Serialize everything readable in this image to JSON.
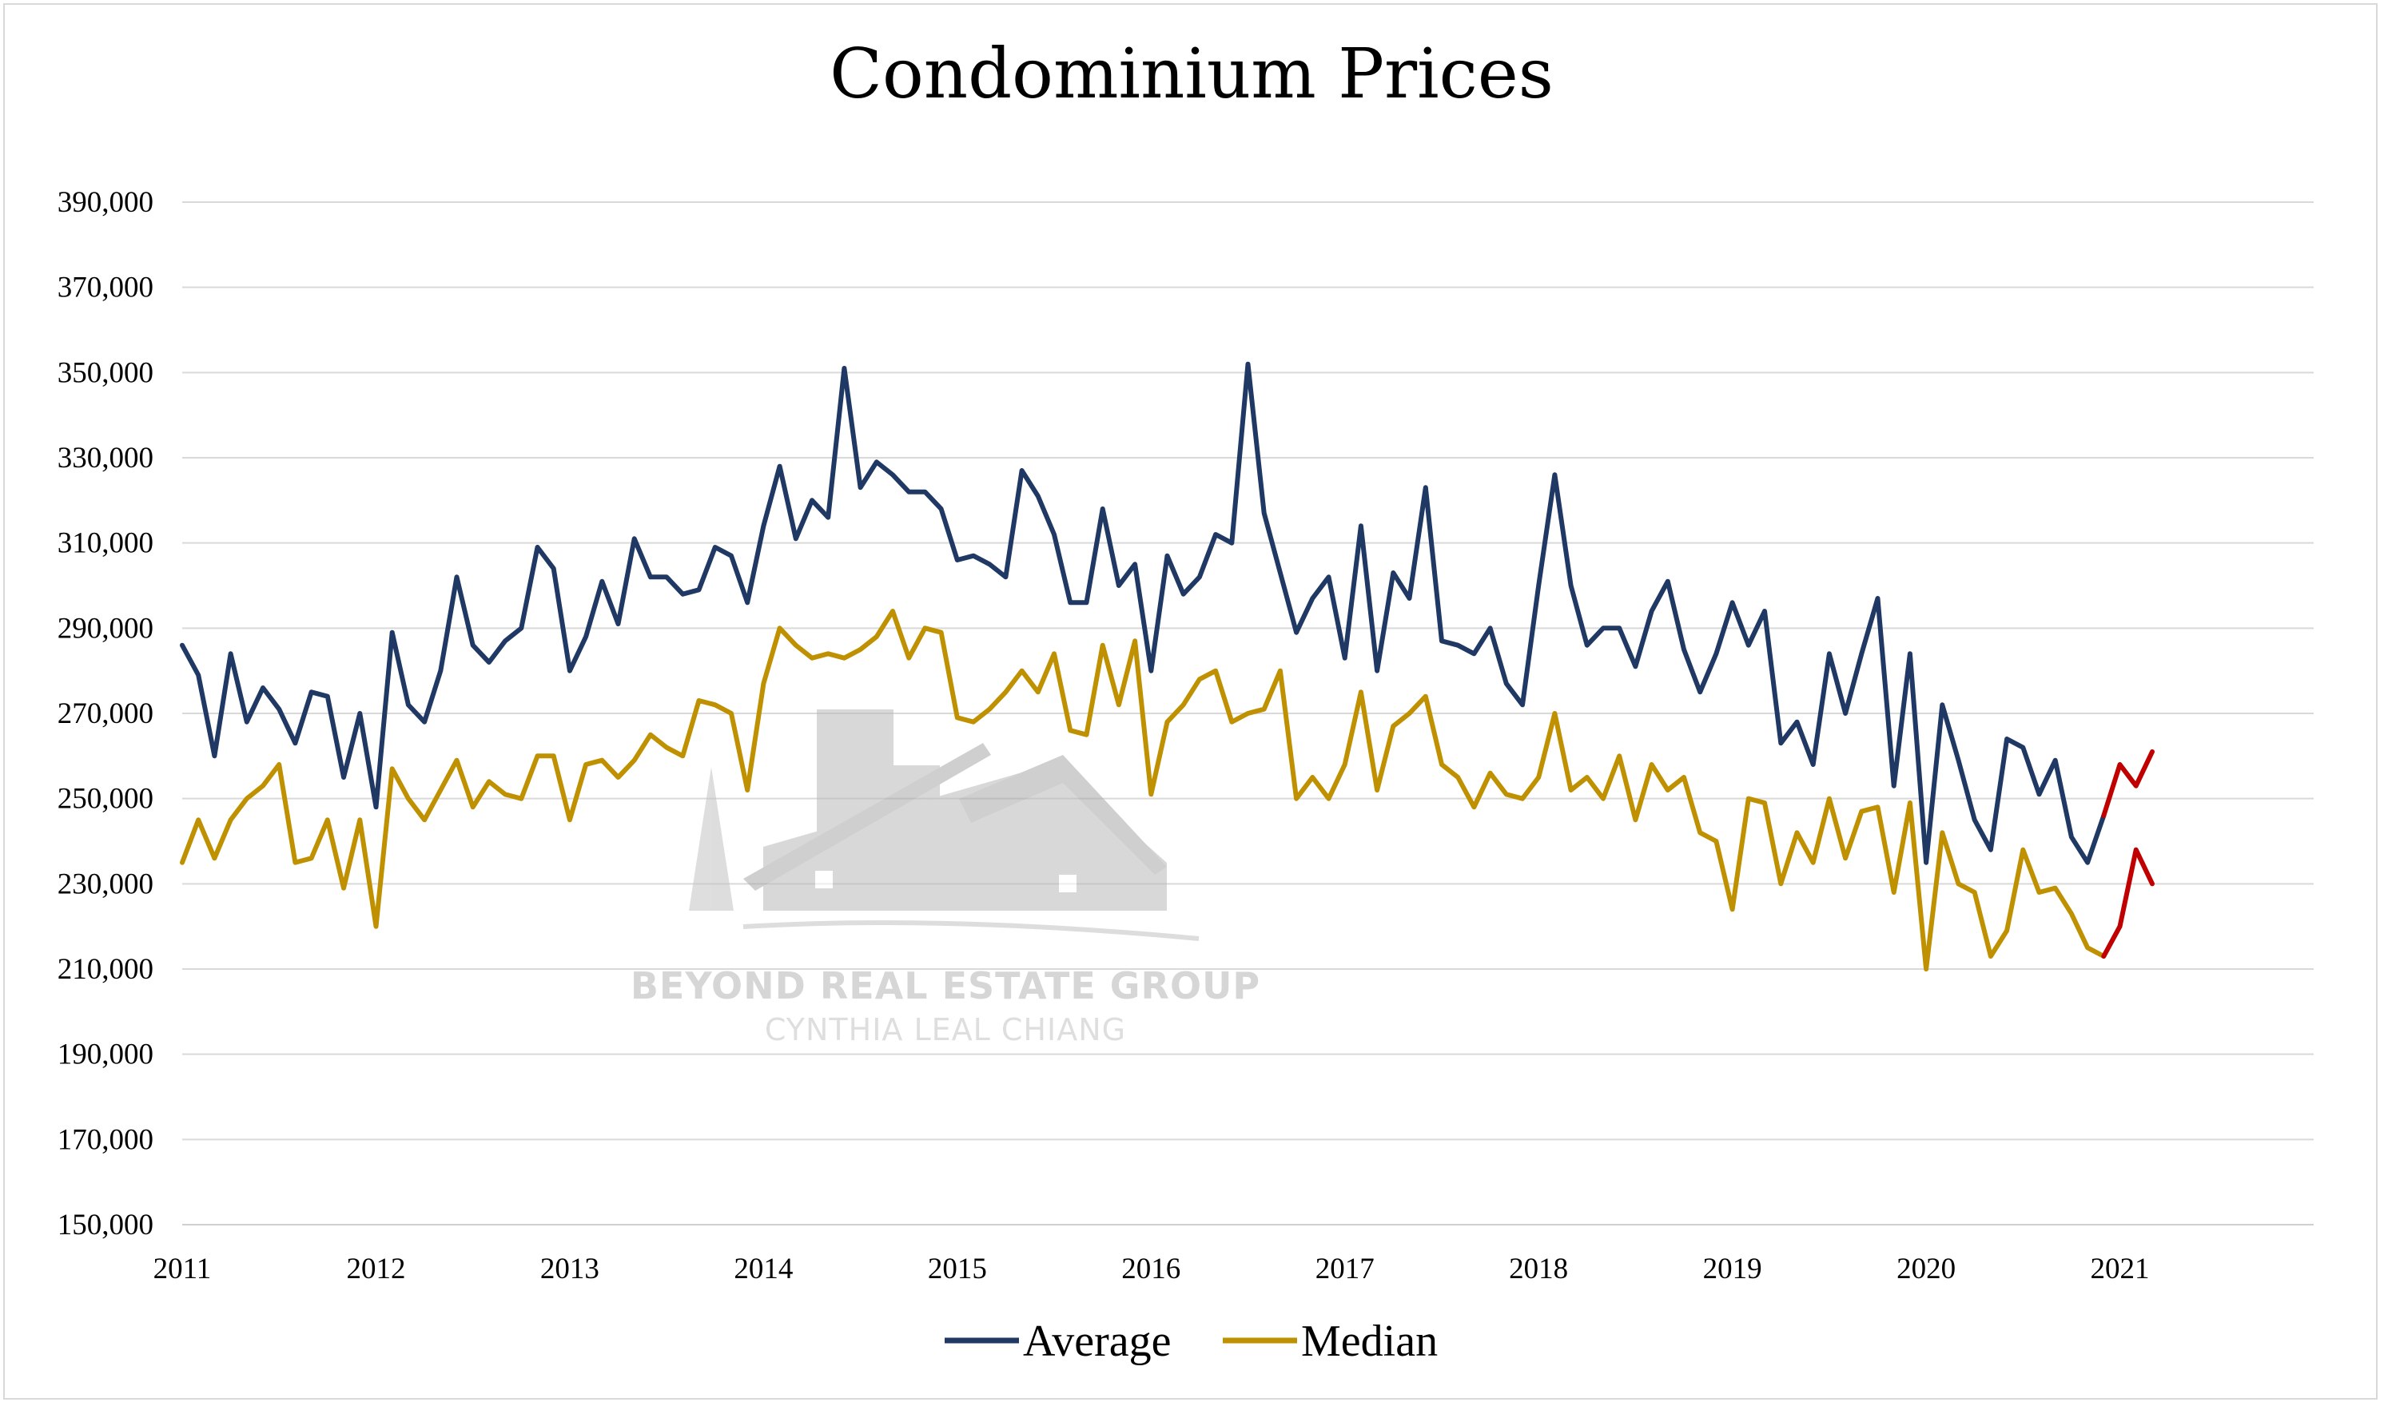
{
  "chart_data": {
    "type": "line",
    "title": "Condominium Prices",
    "xlabel": "",
    "ylabel": "",
    "xlim": [
      2011,
      2022
    ],
    "ylim": [
      150000,
      390000
    ],
    "yticks": [
      150000,
      170000,
      190000,
      210000,
      230000,
      250000,
      270000,
      290000,
      310000,
      330000,
      350000,
      370000,
      390000
    ],
    "ytick_labels": [
      "150,000",
      "170,000",
      "190,000",
      "210,000",
      "230,000",
      "250,000",
      "270,000",
      "290,000",
      "310,000",
      "330,000",
      "350,000",
      "370,000",
      "390,000"
    ],
    "xtick_labels": [
      "2011",
      "2012",
      "2013",
      "2014",
      "2015",
      "2016",
      "2017",
      "2018",
      "2019",
      "2020",
      "2021"
    ],
    "grid": true,
    "legend_position": "bottom",
    "highlight_color": "#c00000",
    "series": [
      {
        "name": "Average",
        "color": "#1f3864",
        "values": [
          286000,
          279000,
          260000,
          284000,
          268000,
          276000,
          271000,
          263000,
          275000,
          274000,
          255000,
          270000,
          248000,
          289000,
          272000,
          268000,
          280000,
          302000,
          286000,
          282000,
          287000,
          290000,
          309000,
          304000,
          280000,
          288000,
          301000,
          291000,
          311000,
          302000,
          302000,
          298000,
          299000,
          309000,
          307000,
          296000,
          314000,
          328000,
          311000,
          320000,
          316000,
          351000,
          323000,
          329000,
          326000,
          322000,
          322000,
          318000,
          306000,
          307000,
          305000,
          302000,
          327000,
          321000,
          312000,
          296000,
          296000,
          318000,
          300000,
          305000,
          280000,
          307000,
          298000,
          302000,
          312000,
          310000,
          352000,
          317000,
          303000,
          289000,
          297000,
          302000,
          283000,
          314000,
          280000,
          303000,
          297000,
          323000,
          287000,
          286000,
          284000,
          290000,
          277000,
          272000,
          300000,
          326000,
          300000,
          286000,
          290000,
          290000,
          281000,
          294000,
          301000,
          285000,
          275000,
          284000,
          296000,
          286000,
          294000,
          263000,
          268000,
          258000,
          284000,
          270000,
          284000,
          297000,
          253000,
          284000,
          235000,
          272000,
          259000,
          245000,
          238000,
          264000,
          262000,
          251000,
          259000,
          241000,
          235000,
          246000,
          258000,
          253000,
          261000
        ]
      },
      {
        "name": "Median",
        "color": "#bf9000",
        "values": [
          235000,
          245000,
          236000,
          245000,
          250000,
          253000,
          258000,
          235000,
          236000,
          245000,
          229000,
          245000,
          220000,
          257000,
          250000,
          245000,
          252000,
          259000,
          248000,
          254000,
          251000,
          250000,
          260000,
          260000,
          245000,
          258000,
          259000,
          255000,
          259000,
          265000,
          262000,
          260000,
          273000,
          272000,
          270000,
          252000,
          277000,
          290000,
          286000,
          283000,
          284000,
          283000,
          285000,
          288000,
          294000,
          283000,
          290000,
          289000,
          269000,
          268000,
          271000,
          275000,
          280000,
          275000,
          284000,
          266000,
          265000,
          286000,
          272000,
          287000,
          251000,
          268000,
          272000,
          278000,
          280000,
          268000,
          270000,
          271000,
          280000,
          250000,
          255000,
          250000,
          258000,
          275000,
          252000,
          267000,
          270000,
          274000,
          258000,
          255000,
          248000,
          256000,
          251000,
          250000,
          255000,
          270000,
          252000,
          255000,
          250000,
          260000,
          245000,
          258000,
          252000,
          255000,
          242000,
          240000,
          224000,
          250000,
          249000,
          230000,
          242000,
          235000,
          250000,
          236000,
          247000,
          248000,
          228000,
          249000,
          210000,
          242000,
          230000,
          228000,
          213000,
          219000,
          238000,
          228000,
          229000,
          223000,
          215000,
          213000,
          220000,
          238000,
          230000
        ]
      }
    ],
    "start": "2011-01",
    "end": "2021-03",
    "highlight_from": "2020-12"
  },
  "watermark": {
    "title": "BEYOND REAL ESTATE GROUP",
    "subtitle": "CYNTHIA LEAL CHIANG"
  }
}
